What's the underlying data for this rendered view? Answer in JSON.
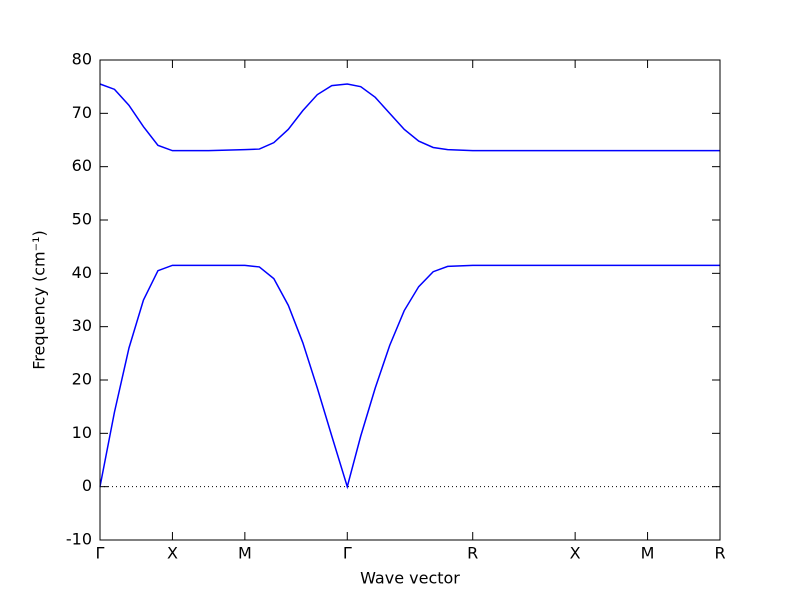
{
  "chart_data": {
    "type": "line",
    "x_label": "Wave vector",
    "y_label": "Frequency (cm⁻¹)",
    "x": [
      0,
      0.1,
      0.2,
      0.3,
      0.4,
      0.5,
      0.75,
      1.0,
      1.1,
      1.2,
      1.3,
      1.4,
      1.5,
      1.6,
      1.707,
      1.8,
      1.9,
      2.0,
      2.1,
      2.2,
      2.3,
      2.4,
      2.573,
      3.28,
      3.78,
      4.28
    ],
    "series": [
      {
        "color": "#0000ff",
        "values": [
          0,
          14,
          26,
          35,
          40.5,
          41.5,
          41.5,
          41.5,
          41.2,
          39,
          34,
          27,
          18.5,
          9.5,
          0,
          9.5,
          18.5,
          26.5,
          33,
          37.5,
          40.3,
          41.3,
          41.5,
          41.5,
          41.5,
          41.5
        ]
      },
      {
        "color": "#0000ff",
        "values": [
          75.5,
          74.5,
          71.5,
          67.5,
          64,
          63,
          63,
          63.2,
          63.3,
          64.5,
          67,
          70.5,
          73.5,
          75.2,
          75.5,
          75,
          73,
          70,
          67,
          64.8,
          63.6,
          63.2,
          63,
          63,
          63,
          63
        ]
      }
    ],
    "hline": 0,
    "xlim": [
      0,
      4.28
    ],
    "ylim": [
      -10,
      80
    ],
    "xticks": [
      {
        "value": 0,
        "label": "Γ"
      },
      {
        "value": 0.5,
        "label": "X"
      },
      {
        "value": 1.0,
        "label": "M"
      },
      {
        "value": 1.707,
        "label": "Γ"
      },
      {
        "value": 2.573,
        "label": "R"
      },
      {
        "value": 3.28,
        "label": "X"
      },
      {
        "value": 3.78,
        "label": "M"
      },
      {
        "value": 4.28,
        "label": "R"
      }
    ],
    "yticks": [
      -10,
      0,
      10,
      20,
      30,
      40,
      50,
      60,
      70,
      80
    ]
  }
}
